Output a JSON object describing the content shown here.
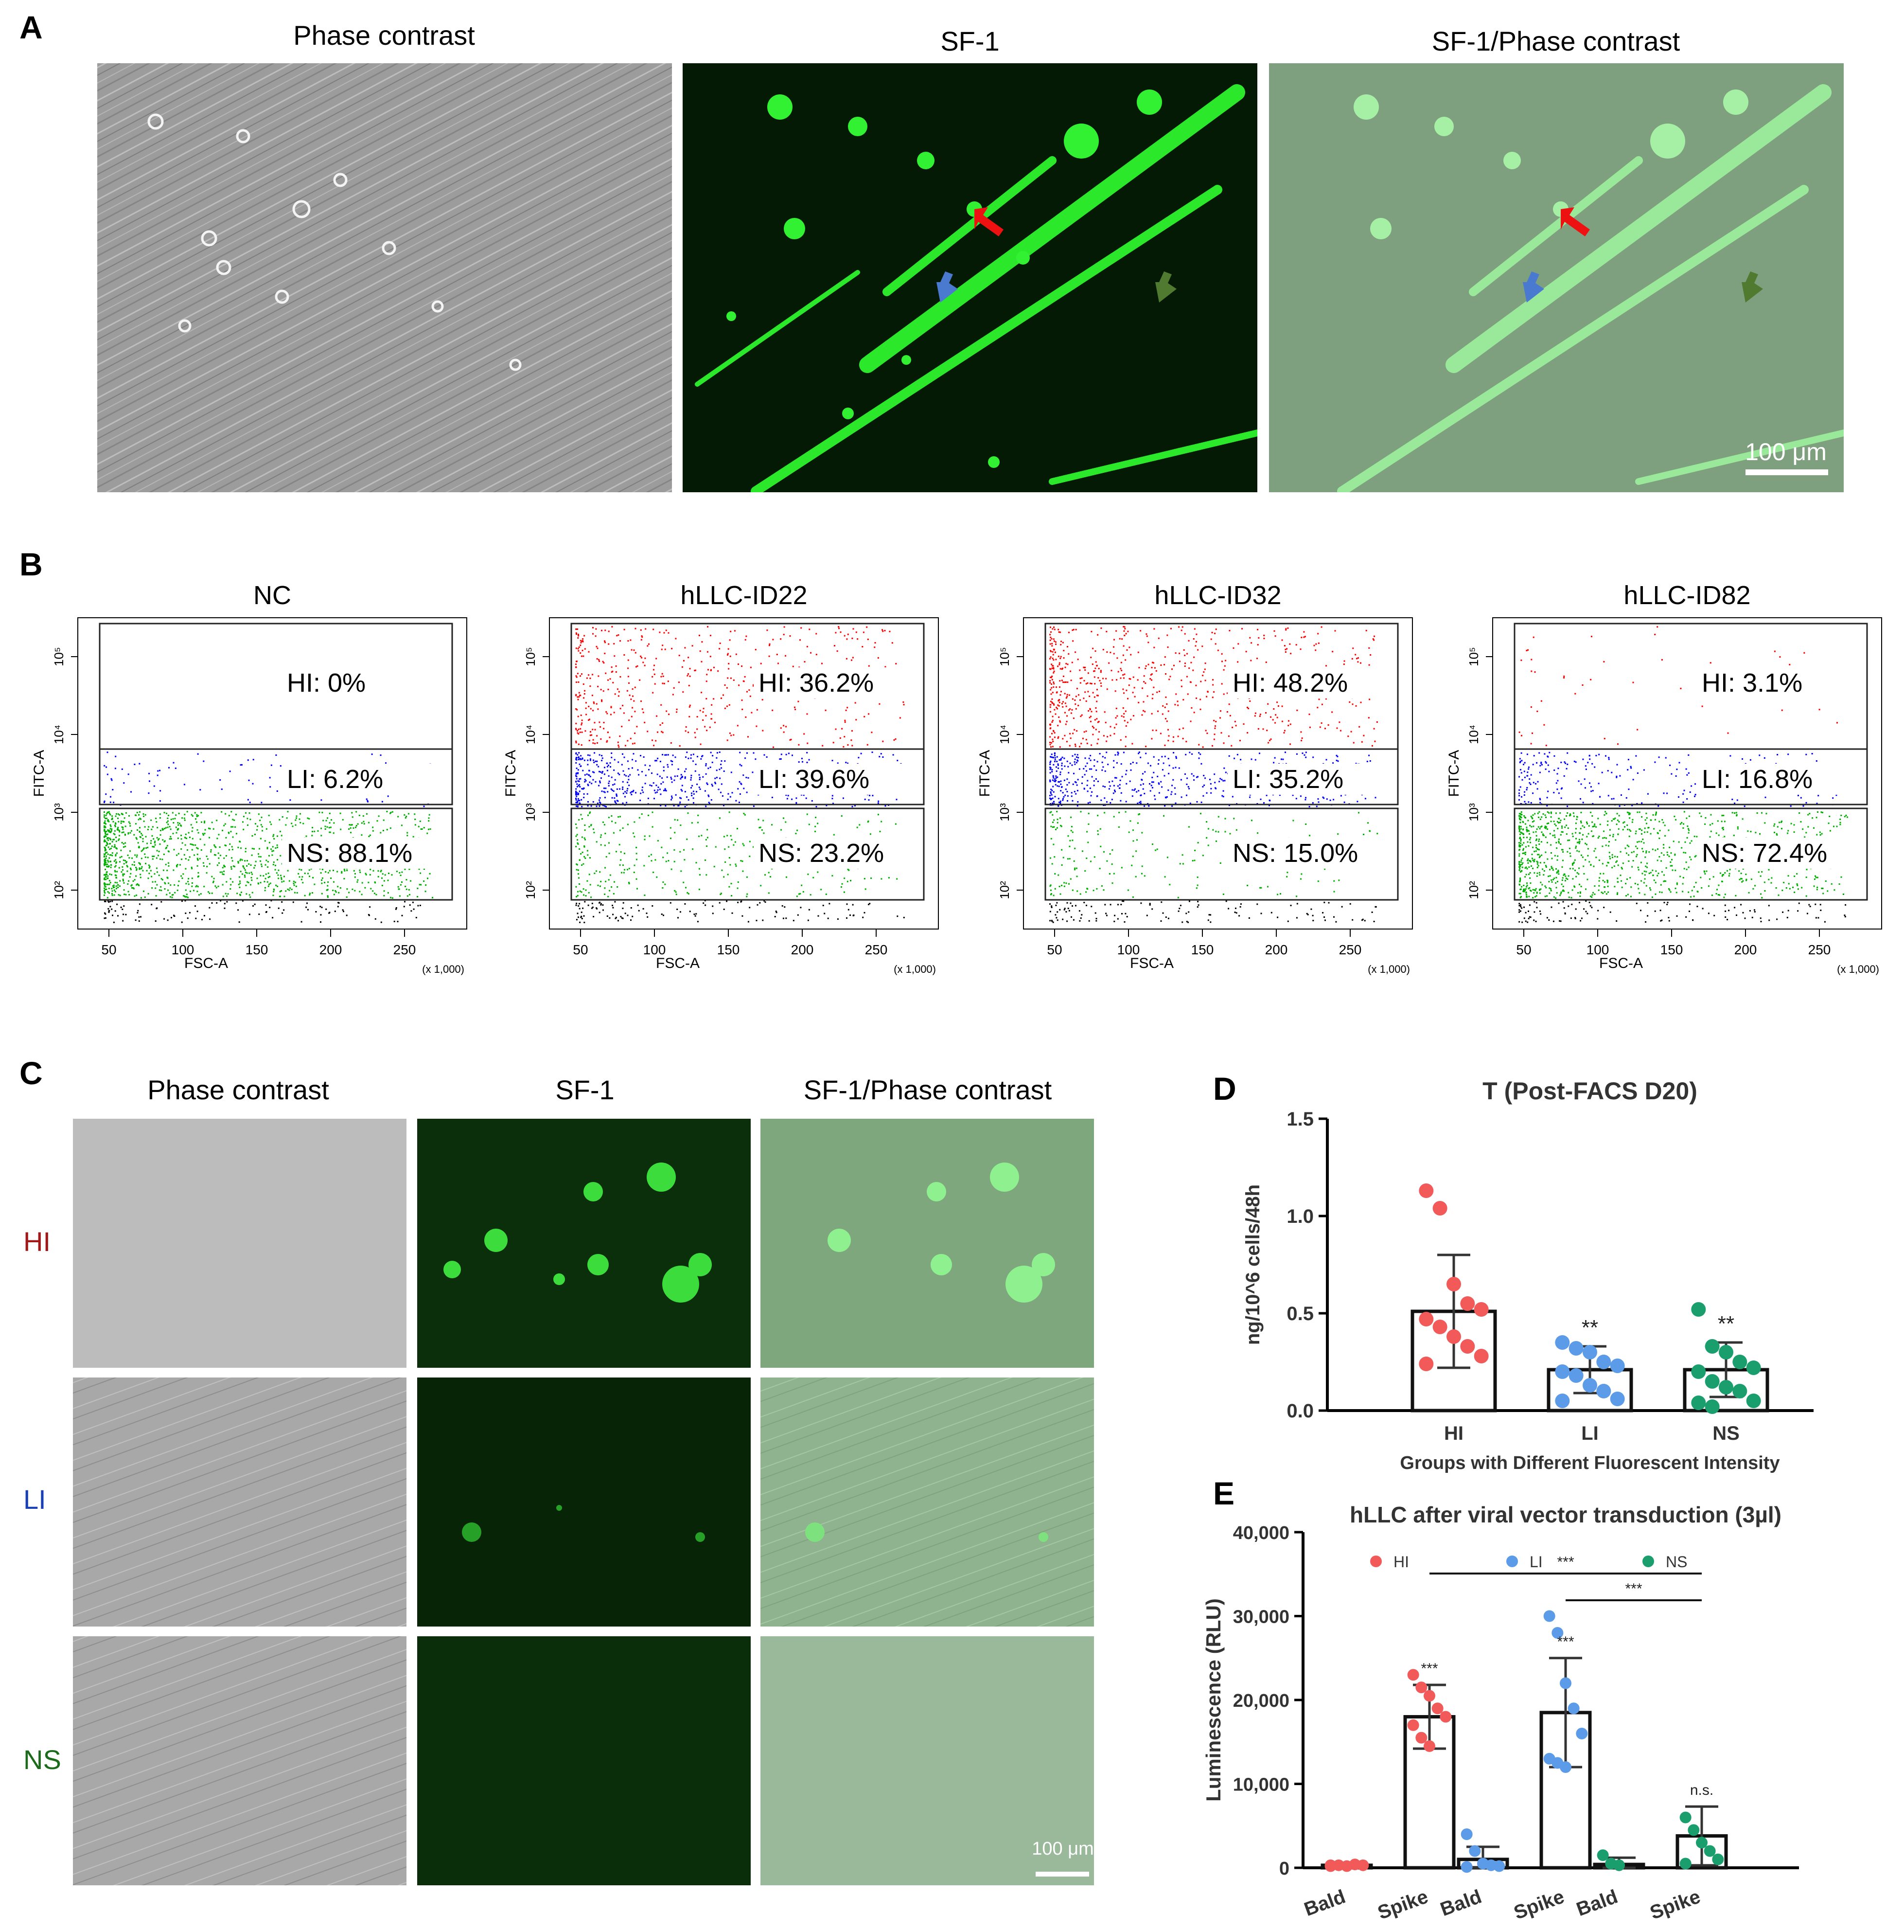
{
  "panel_a": {
    "label": "A",
    "titles": [
      "Phase contrast",
      "SF-1",
      "SF-1/Phase contrast"
    ],
    "scale_bar": "100 μm"
  },
  "panel_b": {
    "label": "B",
    "plots": [
      {
        "title": "NC",
        "gates": [
          "HI: 0%",
          "LI: 6.2%",
          "NS: 88.1%"
        ]
      },
      {
        "title": "hLLC-ID22",
        "gates": [
          "HI: 36.2%",
          "LI: 39.6%",
          "NS: 23.2%"
        ]
      },
      {
        "title": "hLLC-ID32",
        "gates": [
          "HI: 48.2%",
          "LI: 35.2%",
          "NS: 15.0%"
        ]
      },
      {
        "title": "hLLC-ID82",
        "gates": [
          "HI: 3.1%",
          "LI: 16.8%",
          "NS: 72.4%"
        ]
      }
    ],
    "xlabel": "FSC-A",
    "ylabel": "FITC-A",
    "x_unit": "(x 1,000)",
    "x_ticks": [
      "50",
      "100",
      "150",
      "200",
      "250"
    ],
    "y_ticks": [
      "10²",
      "10³",
      "10⁴",
      "10⁵"
    ],
    "colors": {
      "HI": "#ff0000",
      "LI": "#0000ff",
      "NS": "#00b000",
      "neg": "#000000"
    }
  },
  "panel_c": {
    "label": "C",
    "titles": [
      "Phase contrast",
      "SF-1",
      "SF-1/Phase contrast"
    ],
    "rows": [
      {
        "name": "HI",
        "color": "#a01818"
      },
      {
        "name": "LI",
        "color": "#1a3fb5"
      },
      {
        "name": "NS",
        "color": "#1c6b1c"
      }
    ],
    "scale_bar": "100 μm"
  },
  "chart_data": [
    {
      "panel": "D",
      "type": "bar",
      "title": "T (Post-FACS D20)",
      "xlabel": "Groups with Different Fluorescent Intensity",
      "ylabel": "ng/10^6 cells/48h",
      "categories": [
        "HI",
        "LI",
        "NS"
      ],
      "means": [
        0.51,
        0.21,
        0.21
      ],
      "sd": [
        0.29,
        0.12,
        0.14
      ],
      "points": [
        [
          1.13,
          1.04,
          0.65,
          0.55,
          0.52,
          0.47,
          0.43,
          0.38,
          0.33,
          0.28,
          0.24
        ],
        [
          0.35,
          0.32,
          0.3,
          0.25,
          0.23,
          0.2,
          0.18,
          0.13,
          0.1,
          0.06,
          0.05
        ],
        [
          0.52,
          0.33,
          0.3,
          0.25,
          0.22,
          0.2,
          0.15,
          0.12,
          0.1,
          0.05,
          0.04,
          0.02
        ]
      ],
      "annotations": [
        "",
        "**",
        "**"
      ],
      "colors": [
        "#f25a5a",
        "#5b9be8",
        "#1b9e6e"
      ],
      "ylim": [
        0,
        1.5
      ],
      "y_ticks": [
        "0.0",
        "0.5",
        "1.0",
        "1.5"
      ]
    },
    {
      "panel": "E",
      "type": "bar",
      "title": "hLLC after viral vector transduction (3µl)",
      "ylabel": "Luminescence (RLU)",
      "legend": [
        "HI",
        "LI",
        "NS"
      ],
      "legend_position": "top",
      "categories": [
        "Bald",
        "Spike",
        "Bald",
        "Spike",
        "Bald",
        "Spike"
      ],
      "groups": [
        "HI",
        "HI",
        "LI",
        "LI",
        "NS",
        "NS"
      ],
      "means": [
        300,
        18000,
        1000,
        18500,
        400,
        3800
      ],
      "sd": [
        100,
        3800,
        1500,
        6500,
        800,
        3500
      ],
      "points": [
        [
          300,
          300,
          200,
          400,
          300,
          200
        ],
        [
          23000,
          21500,
          20500,
          19000,
          18000,
          17000,
          15500,
          14500
        ],
        [
          4000,
          2000,
          500,
          300,
          200,
          100
        ],
        [
          30000,
          28000,
          22000,
          19000,
          16000,
          13000,
          12500,
          12000
        ],
        [
          1500,
          500,
          300
        ],
        [
          6000,
          4500,
          3000,
          2000,
          1000,
          500
        ]
      ],
      "annotations": [
        "",
        "***",
        "",
        "***",
        "",
        "n.s."
      ],
      "brackets": [
        {
          "from": "HI Spike",
          "to": "NS Spike",
          "label": "***"
        },
        {
          "from": "LI Spike",
          "to": "NS Spike",
          "label": "***"
        }
      ],
      "colors": [
        "#f25a5a",
        "#5b9be8",
        "#1b9e6e"
      ],
      "ylim": [
        0,
        40000
      ],
      "y_ticks": [
        "0",
        "10,000",
        "20,000",
        "30,000",
        "40,000"
      ]
    }
  ]
}
